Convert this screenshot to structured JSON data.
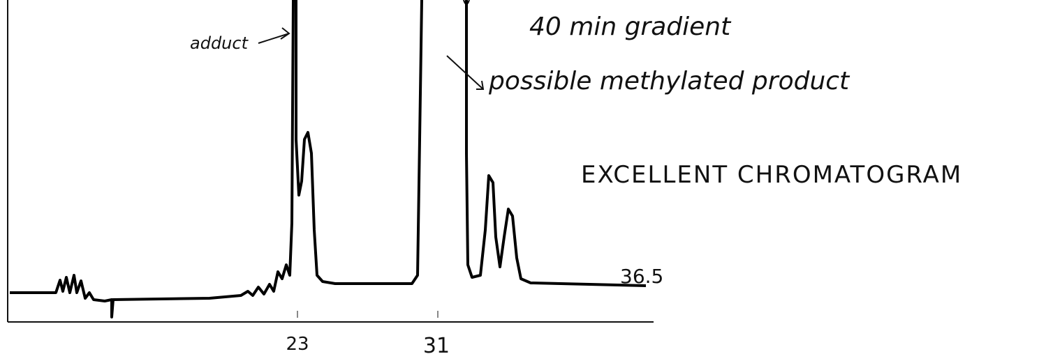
{
  "annotations": {
    "adduct": "adduct",
    "gradient": "40 min gradient",
    "product": "possible methylated product",
    "comment": "EXCELLENT CHROMATOGRAM"
  },
  "axis": {
    "ticks": [
      "23",
      "31"
    ]
  },
  "end_label": "36.5"
}
